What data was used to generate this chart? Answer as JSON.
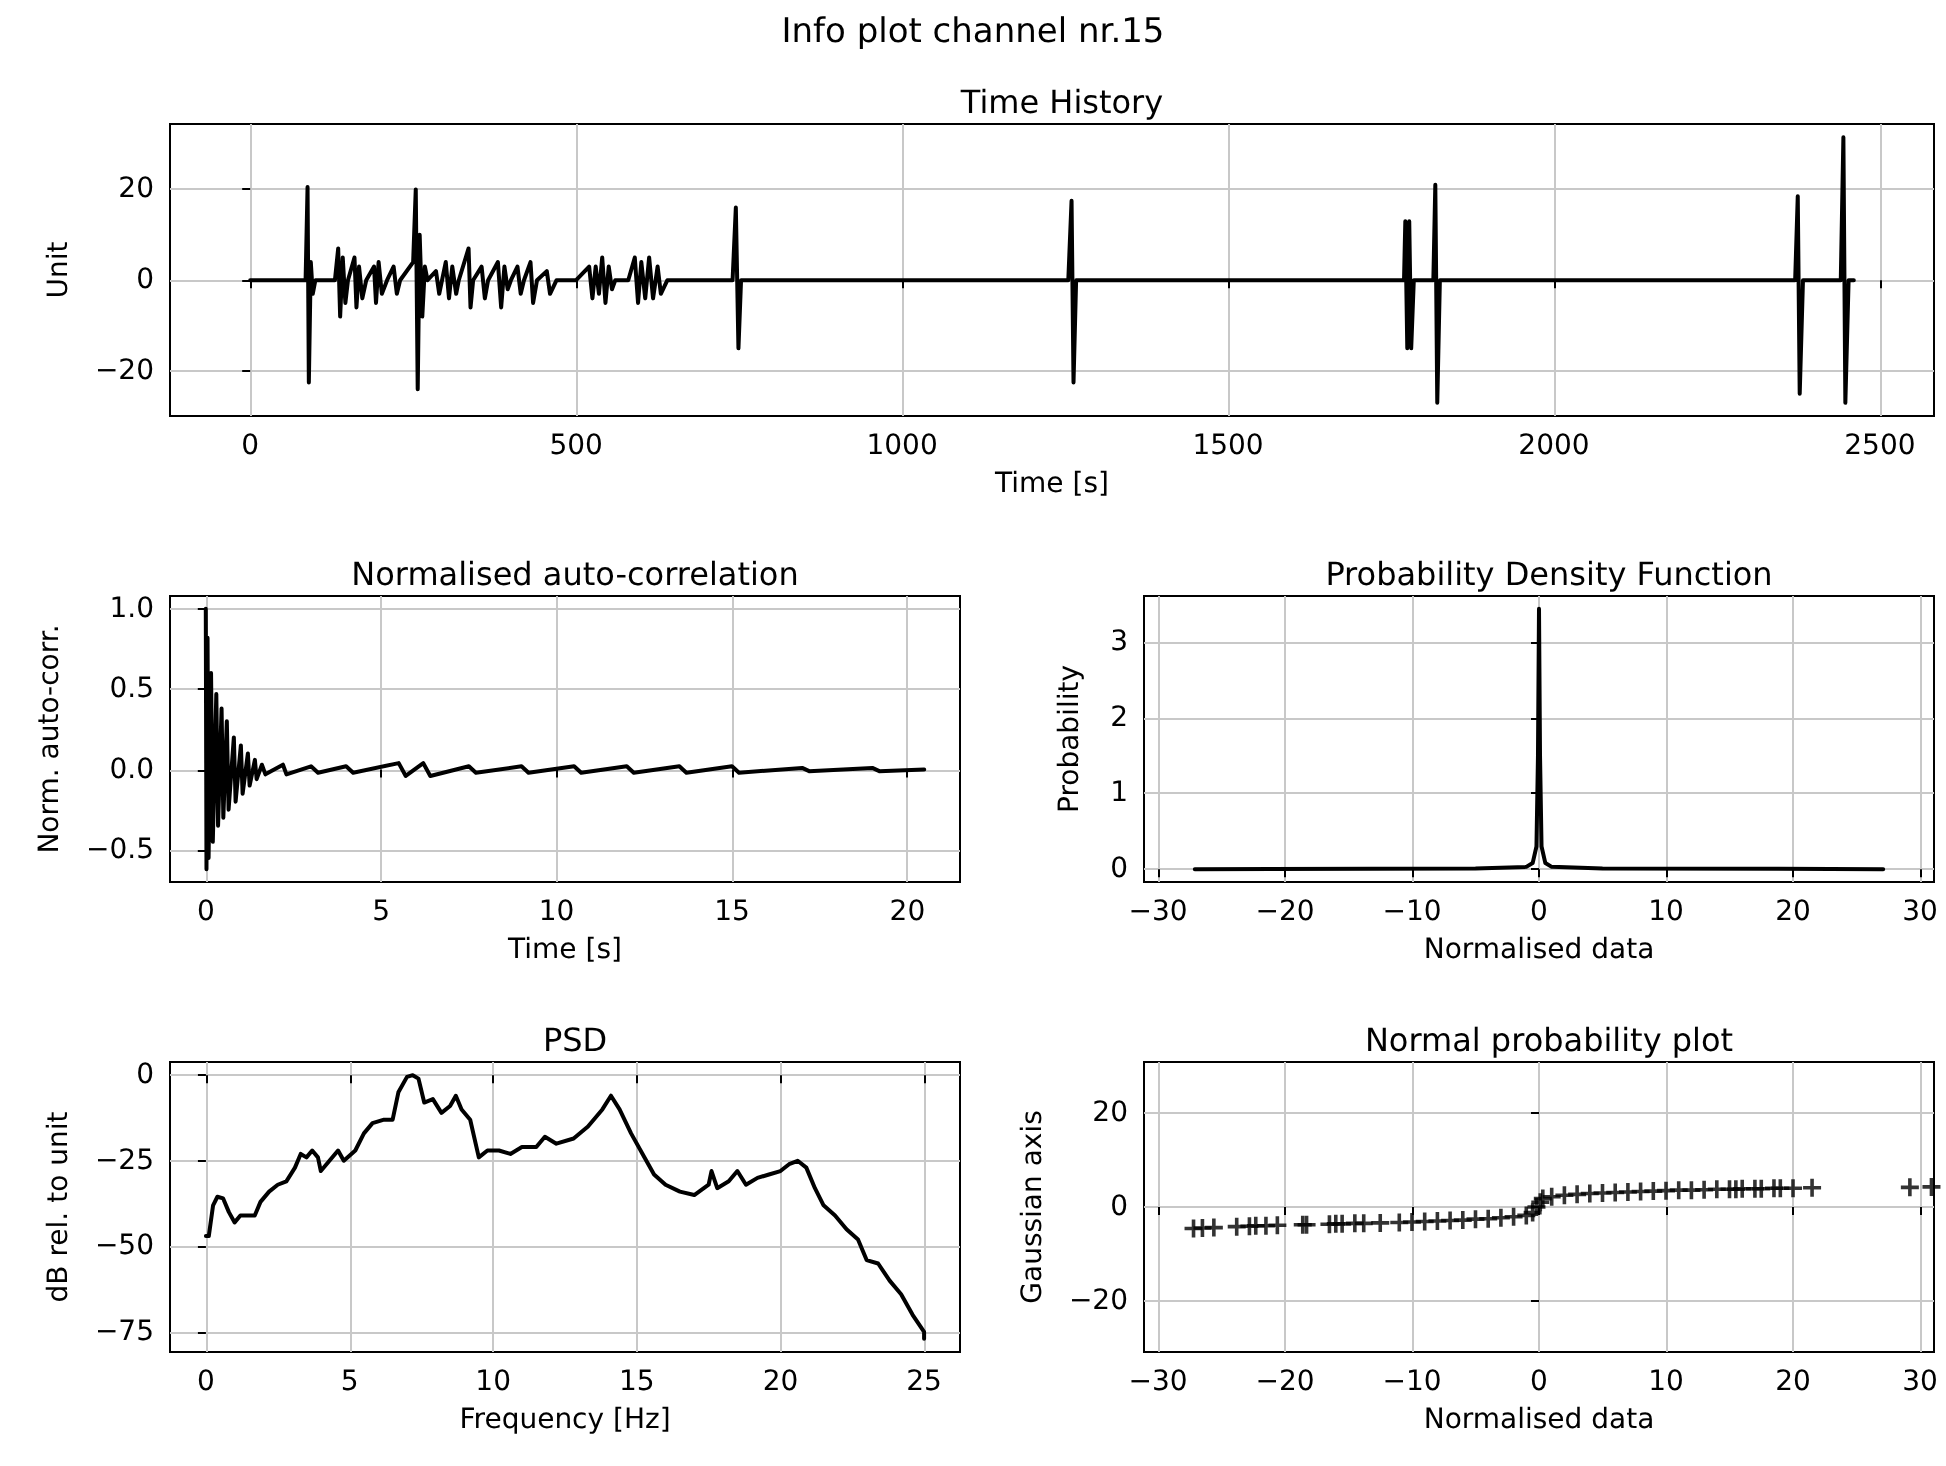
{
  "chart_data": [
    {
      "type": "line",
      "title": "Time History",
      "xlabel": "Time [s]",
      "ylabel": "Unit",
      "annotations": [
        "Info plot channel nr.15"
      ],
      "color": "#000000",
      "grid": true,
      "x": [
        0,
        85,
        88,
        90,
        93,
        96,
        100,
        130,
        135,
        138,
        142,
        146,
        150,
        160,
        163,
        167,
        172,
        178,
        190,
        193,
        197,
        202,
        210,
        220,
        225,
        230,
        250,
        254,
        257,
        260,
        264,
        268,
        272,
        285,
        290,
        300,
        305,
        310,
        316,
        320,
        335,
        338,
        342,
        355,
        360,
        365,
        380,
        385,
        390,
        395,
        400,
        410,
        415,
        420,
        430,
        434,
        440,
        455,
        460,
        470,
        500,
        520,
        525,
        530,
        535,
        540,
        545,
        550,
        555,
        560,
        580,
        590,
        595,
        600,
        606,
        612,
        618,
        625,
        630,
        640,
        740,
        745,
        749,
        753,
        1255,
        1260,
        1263,
        1267,
        1770,
        1772,
        1775,
        1778,
        1781,
        1785,
        1815,
        1818,
        1821,
        1825,
        2370,
        2374,
        2377,
        2382,
        2440,
        2444,
        2447,
        2452,
        2460
      ],
      "values": [
        0,
        0,
        20.5,
        -22.5,
        4,
        -3,
        0,
        0,
        7,
        -8,
        5,
        -5,
        0,
        5,
        -6,
        3,
        -4,
        0,
        3,
        -5,
        4,
        -3,
        0,
        3,
        -3,
        0,
        4,
        20,
        -24,
        10,
        -8,
        3,
        0,
        2,
        -3,
        4,
        -4,
        3,
        -3,
        0,
        7,
        -6,
        0,
        3,
        -4,
        0,
        4,
        -6,
        3,
        -2,
        0,
        3,
        -3,
        0,
        4,
        -5,
        0,
        2,
        -3,
        0,
        0,
        3,
        -4,
        3,
        -3,
        5,
        -5,
        3,
        -2,
        0,
        0,
        5,
        -5,
        4,
        -4,
        5,
        -4,
        3,
        -3,
        0,
        0,
        16,
        -15,
        0,
        0,
        17.5,
        -22.5,
        0,
        0,
        13,
        -15,
        13,
        -15,
        0,
        0,
        21,
        -27,
        0,
        0,
        18.5,
        -25,
        0,
        0,
        31.5,
        -27,
        0,
        0
      ],
      "xlim": [
        -123,
        2583
      ],
      "xticks": [
        0,
        500,
        1000,
        1500,
        2000,
        2500
      ],
      "ylim": [
        -29.9,
        34.4
      ],
      "yticks": [
        -20,
        0,
        20
      ]
    },
    {
      "type": "line",
      "title": "Normalised auto-correlation",
      "xlabel": "Time [s]",
      "ylabel": "Norm. auto-corr.",
      "color": "#000000",
      "grid": true,
      "x": [
        0,
        0.02,
        0.05,
        0.08,
        0.15,
        0.2,
        0.3,
        0.35,
        0.45,
        0.5,
        0.6,
        0.65,
        0.8,
        0.85,
        1.0,
        1.05,
        1.2,
        1.25,
        1.4,
        1.45,
        1.6,
        1.7,
        2.2,
        2.3,
        3,
        3.2,
        4,
        4.2,
        5.5,
        5.7,
        6.2,
        6.4,
        7.5,
        7.7,
        9,
        9.2,
        10.5,
        10.7,
        12,
        12.2,
        13.5,
        13.7,
        15,
        15.2,
        17,
        17.2,
        19,
        19.2,
        20.48
      ],
      "values": [
        1,
        -0.62,
        0.82,
        -0.55,
        0.6,
        -0.45,
        0.47,
        -0.35,
        0.38,
        -0.3,
        0.3,
        -0.25,
        0.2,
        -0.2,
        0.15,
        -0.15,
        0.1,
        -0.1,
        0.06,
        -0.06,
        0.03,
        -0.03,
        0.03,
        -0.03,
        0.02,
        -0.02,
        0.02,
        -0.02,
        0.04,
        -0.04,
        0.04,
        -0.04,
        0.02,
        -0.02,
        0.02,
        -0.02,
        0.02,
        -0.02,
        0.02,
        -0.02,
        0.02,
        -0.02,
        0.02,
        -0.02,
        0.01,
        -0.01,
        0.01,
        -0.01,
        0
      ],
      "xlim": [
        -1.02,
        21.5
      ],
      "xticks": [
        0,
        5,
        10,
        15,
        20
      ],
      "ylim": [
        -0.7,
        1.08
      ],
      "yticks": [
        {
          "value": -0.5,
          "label": "−0.5"
        },
        {
          "value": 0,
          "label": "0.0"
        },
        {
          "value": 0.5,
          "label": "0.5"
        },
        {
          "value": 1,
          "label": "1.0"
        }
      ]
    },
    {
      "type": "line",
      "title": "Probability Density Function",
      "xlabel": "Normalised data",
      "ylabel": "Probability",
      "color": "#000000",
      "grid": true,
      "x": [
        -27.1,
        -5,
        -1,
        -0.5,
        -0.2,
        -0.08,
        0,
        0.08,
        0.2,
        0.5,
        1,
        5,
        27.1
      ],
      "values": [
        0,
        0.01,
        0.03,
        0.08,
        0.3,
        1.5,
        3.44,
        1.5,
        0.3,
        0.08,
        0.03,
        0.01,
        0
      ],
      "xlim": [
        -31.1,
        31.1
      ],
      "xticks": [
        -30,
        -20,
        -10,
        0,
        10,
        20,
        30
      ],
      "ylim": [
        -0.17,
        3.61
      ],
      "yticks": [
        0,
        1,
        2,
        3
      ]
    },
    {
      "type": "line",
      "title": "PSD",
      "xlabel": "Frequency [Hz]",
      "ylabel": "dB rel. to unit",
      "color": "#000000",
      "grid": true,
      "x": [
        0,
        0.1,
        0.25,
        0.4,
        0.6,
        0.8,
        1.0,
        1.2,
        1.5,
        1.7,
        1.9,
        2.2,
        2.5,
        2.8,
        3.1,
        3.3,
        3.5,
        3.7,
        3.9,
        4.0,
        4.3,
        4.6,
        4.8,
        5.2,
        5.5,
        5.8,
        6.2,
        6.5,
        6.7,
        7.0,
        7.2,
        7.4,
        7.6,
        7.9,
        8.2,
        8.5,
        8.7,
        8.9,
        9.2,
        9.5,
        9.8,
        10.2,
        10.6,
        11,
        11.5,
        11.8,
        12.2,
        12.8,
        13.3,
        13.8,
        14.1,
        14.4,
        14.8,
        15.2,
        15.6,
        16,
        16.5,
        17,
        17.5,
        17.6,
        17.8,
        18.2,
        18.5,
        18.8,
        19.2,
        19.6,
        20,
        20.3,
        20.6,
        20.9,
        21.2,
        21.5,
        21.9,
        22.3,
        22.7,
        23.0,
        23.4,
        23.8,
        24.2,
        24.6,
        25,
        25
      ],
      "values": [
        -47,
        -47,
        -38,
        -35.5,
        -36,
        -40,
        -43,
        -41,
        -41,
        -41,
        -37,
        -34,
        -32,
        -31,
        -27,
        -23,
        -24,
        -22,
        -24,
        -28,
        -25,
        -22,
        -25,
        -22,
        -17,
        -14,
        -13,
        -13,
        -5,
        -0.5,
        0,
        -1,
        -8,
        -7,
        -11,
        -9,
        -6,
        -10,
        -13,
        -24,
        -22,
        -22,
        -23,
        -21,
        -21,
        -18,
        -20,
        -18.5,
        -15,
        -10,
        -6,
        -10,
        -17,
        -23,
        -29,
        -32,
        -34,
        -35,
        -32,
        -28,
        -33,
        -31,
        -28,
        -32,
        -30,
        -29,
        -28,
        -26,
        -25,
        -27,
        -33,
        -38,
        -41,
        -45,
        -48,
        -54,
        -55,
        -60,
        -64,
        -70,
        -75,
        -77
      ],
      "xlim": [
        -1.25,
        26.25
      ],
      "xticks": [
        0,
        5,
        10,
        15,
        20,
        25
      ],
      "ylim": [
        -80.85,
        3.85
      ],
      "yticks": [
        -75,
        -50,
        -25,
        0
      ]
    },
    {
      "type": "scatter",
      "title": "Normal probability plot",
      "xlabel": "Normalised data",
      "ylabel": "Gaussian axis",
      "color": "#000000",
      "grid": true,
      "marker": "cross",
      "x": [
        -27.2,
        -26.5,
        -25.6,
        -23.8,
        -22.8,
        -22.3,
        -21.5,
        -20.6,
        -18.6,
        -18.3,
        -16.5,
        -16,
        -15.5,
        -14.5,
        -13.8,
        -12.5,
        -11,
        -10,
        -9,
        -8,
        -7,
        -6,
        -5,
        -4,
        -3,
        -2,
        -1,
        -0.5,
        -0.2,
        0.1,
        0.3,
        1,
        2,
        3,
        4,
        5,
        6,
        7,
        8,
        9,
        10,
        11,
        12,
        13,
        14,
        15,
        15.5,
        16,
        17,
        17.5,
        18.5,
        19,
        20,
        21.5,
        29.2,
        30.9
      ],
      "values": [
        -4.6,
        -4.5,
        -4.4,
        -4.2,
        -4.1,
        -4,
        -4,
        -3.9,
        -3.8,
        -3.8,
        -3.7,
        -3.6,
        -3.6,
        -3.5,
        -3.5,
        -3.4,
        -3.3,
        -3.2,
        -3.1,
        -3,
        -2.9,
        -2.8,
        -2.6,
        -2.5,
        -2.3,
        -2.1,
        -1.8,
        -1.2,
        0,
        1,
        1.8,
        2.2,
        2.5,
        2.7,
        2.9,
        3,
        3.1,
        3.2,
        3.3,
        3.4,
        3.5,
        3.6,
        3.6,
        3.7,
        3.8,
        3.8,
        3.8,
        3.9,
        3.9,
        3.9,
        4,
        4,
        4,
        4.1,
        4.2,
        4.3
      ],
      "xlim": [
        -31.1,
        31.1
      ],
      "xticks": [
        -30,
        -20,
        -10,
        0,
        10,
        20,
        30
      ],
      "ylim": [
        -31,
        31
      ],
      "yticks": [
        -20,
        0,
        20
      ]
    }
  ]
}
